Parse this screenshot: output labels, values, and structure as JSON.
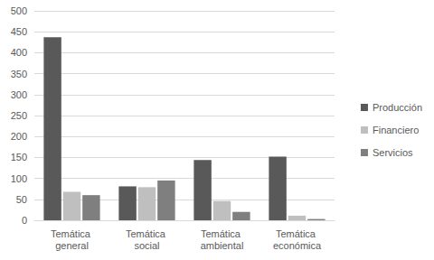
{
  "chart_data": {
    "type": "bar",
    "categories": [
      "Temática general",
      "Temática social",
      "Temática ambiental",
      "Temática económica"
    ],
    "series": [
      {
        "name": "Producción",
        "color": "#595959",
        "values": [
          437,
          81,
          144,
          152
        ]
      },
      {
        "name": "Financiero",
        "color": "#bfbfbf",
        "values": [
          68,
          79,
          46,
          11
        ]
      },
      {
        "name": "Servicios",
        "color": "#7f7f7f",
        "values": [
          60,
          95,
          20,
          3
        ]
      }
    ],
    "ylim": [
      0,
      500
    ],
    "yticks": [
      0,
      50,
      100,
      150,
      200,
      250,
      300,
      350,
      400,
      450,
      500
    ],
    "grid": true,
    "legend": "right"
  }
}
